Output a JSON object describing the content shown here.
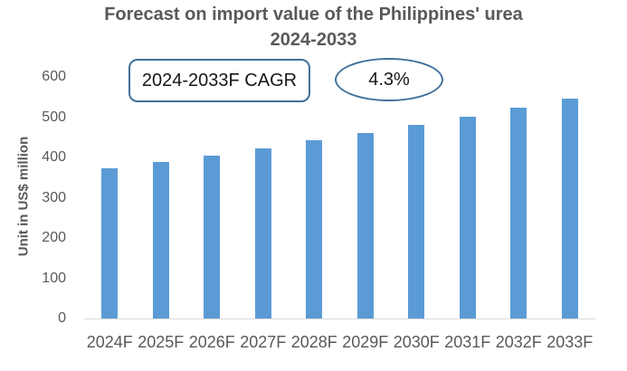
{
  "title": {
    "line1": "Forecast on import value of the Philippines' urea",
    "line2": "2024-2033"
  },
  "annotations": {
    "cagr_label": "2024-2033F CAGR",
    "cagr_value": "4.3%"
  },
  "chart_data": {
    "type": "bar",
    "title": "Forecast on import value of the Philippines' urea 2024-2033",
    "categories": [
      "2024F",
      "2025F",
      "2026F",
      "2027F",
      "2028F",
      "2029F",
      "2030F",
      "2031F",
      "2032F",
      "2033F"
    ],
    "values": [
      372,
      388,
      405,
      423,
      442,
      461,
      481,
      501,
      523,
      545
    ],
    "xlabel": "",
    "ylabel": "Unit in US$ million",
    "ylim": [
      0,
      600
    ],
    "yticks": [
      0,
      100,
      200,
      300,
      400,
      500,
      600
    ],
    "grid": false,
    "legend": "none",
    "annotation": "2024-2033F CAGR: 4.3%"
  },
  "colors": {
    "bar": "#5B9BD5",
    "text": "#595959",
    "axis_line": "#D9D9D9",
    "shape_border": "#41719C"
  }
}
